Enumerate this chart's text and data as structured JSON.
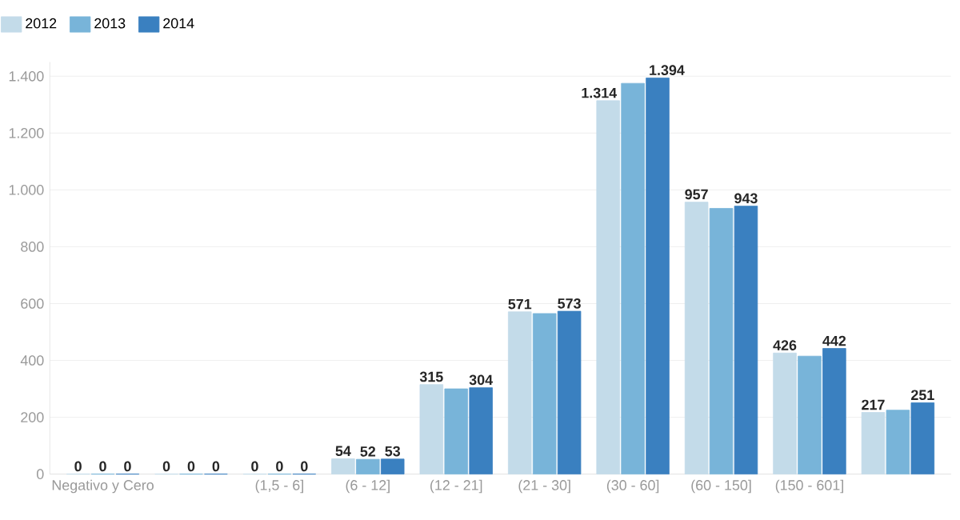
{
  "chart_data": {
    "type": "bar",
    "categories": [
      "Negativo y Cero",
      null,
      "(1,5 - 6]",
      "(6 - 12]",
      "(12 - 21]",
      "(21 - 30]",
      "(30 - 60]",
      "(60 - 150]",
      "(150 - 601]",
      null
    ],
    "series": [
      {
        "name": "2012",
        "color": "#c3dbe9",
        "values": [
          0,
          0,
          0,
          54,
          315,
          571,
          1314,
          957,
          426,
          217
        ],
        "value_labels": [
          "0",
          "0",
          "0",
          "54",
          "315",
          "571",
          "1.314",
          "957",
          "426",
          "217"
        ]
      },
      {
        "name": "2013",
        "color": "#78b4d9",
        "values": [
          0,
          0,
          0,
          52,
          300,
          565,
          1375,
          935,
          415,
          225
        ],
        "value_labels": [
          "0",
          "0",
          "0",
          "52",
          null,
          null,
          null,
          null,
          null,
          null
        ]
      },
      {
        "name": "2014",
        "color": "#3a80c0",
        "values": [
          0,
          0,
          0,
          53,
          304,
          573,
          1394,
          943,
          442,
          251
        ],
        "value_labels": [
          "0",
          "0",
          "0",
          "53",
          "304",
          "573",
          "1.394",
          "943",
          "442",
          "251"
        ]
      }
    ],
    "ylim": [
      0,
      1450
    ],
    "yticks": [
      0,
      {
        "value": 200,
        "label": "200"
      },
      {
        "value": 400,
        "label": "400"
      },
      {
        "value": 600,
        "label": "600"
      },
      {
        "value": 800,
        "label": "800"
      },
      {
        "value": 1000,
        "label": "1.000"
      },
      {
        "value": 1200,
        "label": "1.200"
      },
      {
        "value": 1400,
        "label": "1.400"
      }
    ],
    "grid": "y",
    "legend": "top left"
  }
}
